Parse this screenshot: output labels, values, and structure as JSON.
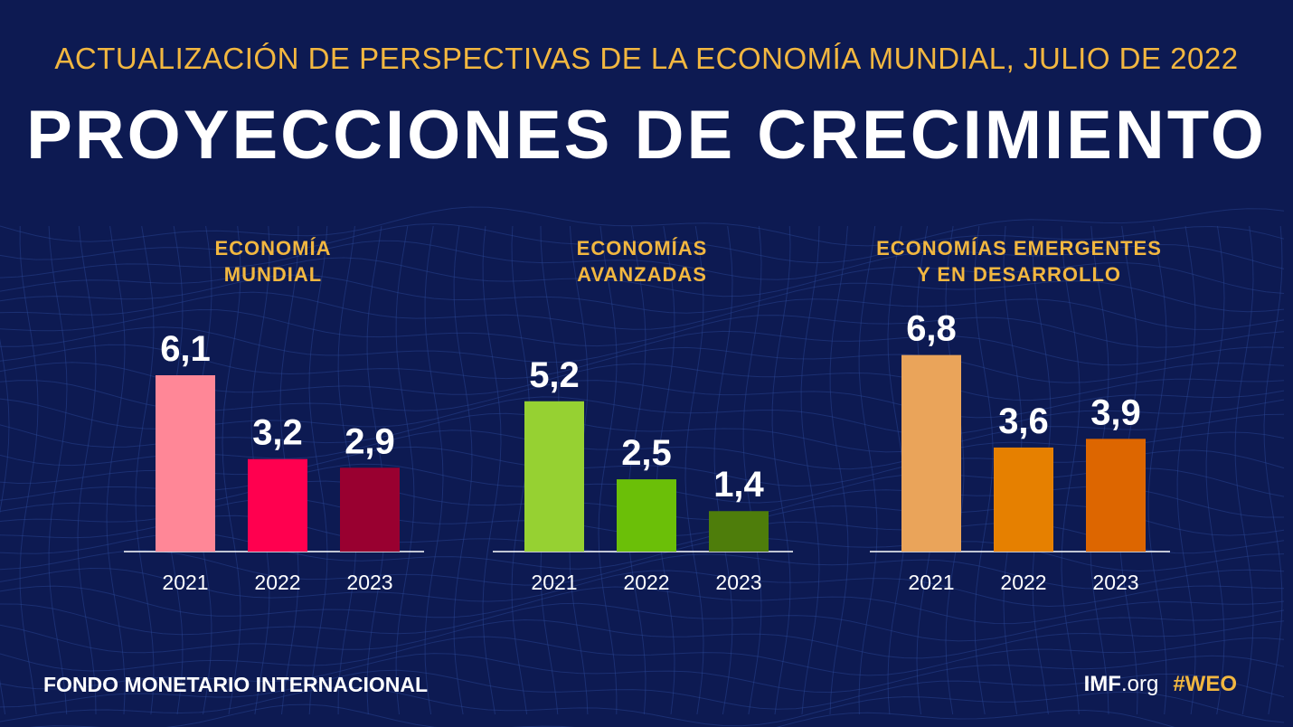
{
  "header": {
    "subtitle": "ACTUALIZACIÓN DE PERSPECTIVAS DE LA ECONOMÍA MUNDIAL, JULIO DE 2022",
    "title": "PROYECCIONES DE CRECIMIENTO"
  },
  "footer": {
    "organization": "FONDO MONETARIO INTERNACIONAL",
    "site_bold": "IMF",
    "site_rest": ".org",
    "hashtag": "#WEO"
  },
  "chart_data": [
    {
      "type": "bar",
      "title": [
        "ECONOMÍA",
        "MUNDIAL"
      ],
      "categories": [
        "2021",
        "2022",
        "2023"
      ],
      "values": [
        6.1,
        3.2,
        2.9
      ],
      "labels": [
        "6,1",
        "3,2",
        "2,9"
      ],
      "colors": [
        "#ff8797",
        "#ff004f",
        "#990030"
      ],
      "ylim": [
        0,
        7
      ]
    },
    {
      "type": "bar",
      "title": [
        "ECONOMÍAS",
        "AVANZADAS"
      ],
      "categories": [
        "2021",
        "2022",
        "2023"
      ],
      "values": [
        5.2,
        2.5,
        1.4
      ],
      "labels": [
        "5,2",
        "2,5",
        "1,4"
      ],
      "colors": [
        "#96d132",
        "#6bbf08",
        "#4e7d0b"
      ],
      "ylim": [
        0,
        7
      ]
    },
    {
      "type": "bar",
      "title": [
        "ECONOMÍAS EMERGENTES",
        "Y EN DESARROLLO"
      ],
      "categories": [
        "2021",
        "2022",
        "2023"
      ],
      "values": [
        6.8,
        3.6,
        3.9
      ],
      "labels": [
        "6,8",
        "3,6",
        "3,9"
      ],
      "colors": [
        "#eaa45a",
        "#e68000",
        "#dd6600"
      ],
      "ylim": [
        0,
        7
      ]
    }
  ]
}
